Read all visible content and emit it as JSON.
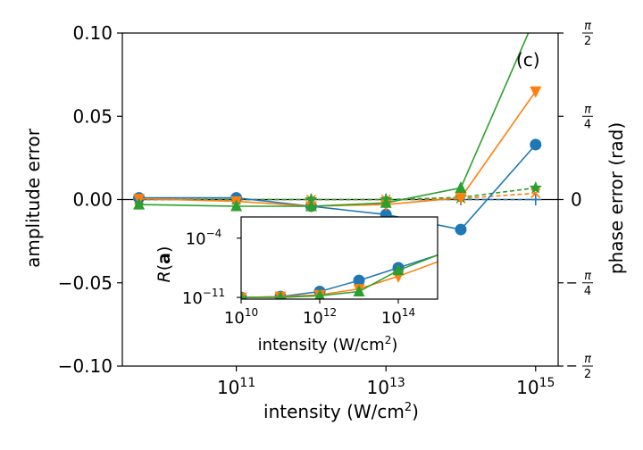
{
  "chart_data": [
    {
      "type": "line",
      "panel_label": "(c)",
      "xlabel": "intensity (W/cm",
      "xlabel_sup": "2",
      "xlabel_close": ")",
      "x_scale": "log",
      "xlim": [
        3000000000.0,
        2000000000000000.0
      ],
      "x_ticks": [
        100000000000.0,
        10000000000000.0,
        1000000000000000.0
      ],
      "x_tick_labels": [
        {
          "base": "10",
          "exp": "11"
        },
        {
          "base": "10",
          "exp": "13"
        },
        {
          "base": "10",
          "exp": "15"
        }
      ],
      "ylabel": "amplitude error",
      "ylim": [
        -0.1,
        0.1
      ],
      "y_ticks": [
        -0.1,
        -0.05,
        0.0,
        0.05,
        0.1
      ],
      "y_tick_labels": [
        "−0.10",
        "−0.05",
        "0.00",
        "0.05",
        "0.10"
      ],
      "y2label": "phase error (rad)",
      "y2lim": [
        -1.5708,
        1.5708
      ],
      "y2_ticks": [
        {
          "value": 1.5708,
          "sign": "",
          "num": "π",
          "den": "2"
        },
        {
          "value": 0.7854,
          "sign": "",
          "num": "π",
          "den": "4"
        },
        {
          "value": 0.0,
          "plain": "0"
        },
        {
          "value": -0.7854,
          "sign": "−",
          "num": "π",
          "den": "4"
        },
        {
          "value": -1.5708,
          "sign": "−",
          "num": "π",
          "den": "2"
        }
      ],
      "x": [
        5000000000.0,
        100000000000.0,
        1000000000000.0,
        10000000000000.0,
        100000000000000.0,
        1000000000000000.0
      ],
      "amplitude_series": [
        {
          "color": "#1f77b4",
          "marker": "circle",
          "values": [
            0.001,
            0.001,
            -0.004,
            -0.009,
            -0.018,
            0.033
          ]
        },
        {
          "color": "#ff7f0e",
          "marker": "triangle-down",
          "values": [
            0.0005,
            -0.001,
            -0.004,
            -0.003,
            0.001,
            0.065
          ]
        },
        {
          "color": "#2ca02c",
          "marker": "triangle-up",
          "values": [
            -0.003,
            -0.004,
            -0.004,
            -0.002,
            0.007,
            0.11
          ]
        }
      ],
      "phase_series": [
        {
          "color": "#1f77b4",
          "marker": "plus",
          "values": [
            0.0,
            0.0,
            0.0,
            0.0,
            0.0,
            0.0
          ]
        },
        {
          "color": "#ff7f0e",
          "marker": "x",
          "values": [
            0.0,
            0.0,
            0.0,
            0.0,
            0.01,
            0.06
          ]
        },
        {
          "color": "#2ca02c",
          "marker": "star",
          "values": [
            0.0,
            0.0,
            0.0,
            0.0,
            0.02,
            0.11
          ]
        }
      ],
      "grid": false,
      "legend": "none"
    },
    {
      "type": "line",
      "role": "inset",
      "ylabel_italic": "R",
      "ylabel_open": "(",
      "ylabel_bold": "a",
      "ylabel_close": ")",
      "xlabel": "intensity (W/cm",
      "xlabel_sup": "2",
      "xlabel_close": ")",
      "x_scale": "log",
      "y_scale": "log",
      "xlim": [
        10000000000.0,
        1000000000000000.0
      ],
      "ylim_log10": [
        -11.2,
        -1.5
      ],
      "x_ticks": [
        10000000000.0,
        1000000000000.0,
        100000000000000.0
      ],
      "x_tick_labels": [
        {
          "base": "10",
          "exp": "10"
        },
        {
          "base": "10",
          "exp": "12"
        },
        {
          "base": "10",
          "exp": "14"
        }
      ],
      "y_ticks_log10": [
        -11,
        -4
      ],
      "y_tick_labels": [
        {
          "base": "10",
          "exp": "−11"
        },
        {
          "base": "10",
          "exp": "−4"
        }
      ],
      "x": [
        10000000000.0,
        100000000000.0,
        1000000000000.0,
        10000000000000.0,
        100000000000000.0,
        1000000000000000.0
      ],
      "series": [
        {
          "color": "#1f77b4",
          "marker": "circle",
          "log10_values": [
            -11.0,
            -10.9,
            -10.3,
            -9.0,
            -7.5,
            -6.0
          ]
        },
        {
          "color": "#ff7f0e",
          "marker": "triangle-down",
          "log10_values": [
            -11.0,
            -10.9,
            -10.7,
            -10.0,
            -8.5,
            -6.8
          ]
        },
        {
          "color": "#2ca02c",
          "marker": "triangle-up",
          "log10_values": [
            -11.0,
            -11.0,
            -10.8,
            -10.3,
            -7.8,
            -6.0
          ]
        }
      ]
    }
  ]
}
